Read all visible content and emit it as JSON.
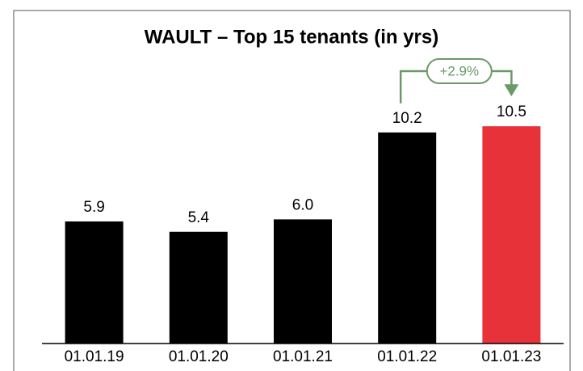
{
  "chart_data": {
    "type": "bar",
    "title": "WAULT – Top 15 tenants (in yrs)",
    "categories": [
      "01.01.19",
      "01.01.20",
      "01.01.21",
      "01.01.22",
      "01.01.23"
    ],
    "values": [
      5.9,
      5.4,
      6.0,
      10.2,
      10.5
    ],
    "value_labels": [
      "5.9",
      "5.4",
      "6.0",
      "10.2",
      "10.5"
    ],
    "colors": [
      "#000000",
      "#000000",
      "#000000",
      "#000000",
      "#e8323a"
    ],
    "ylim": [
      0,
      15
    ],
    "annotation": "+2.9%"
  }
}
